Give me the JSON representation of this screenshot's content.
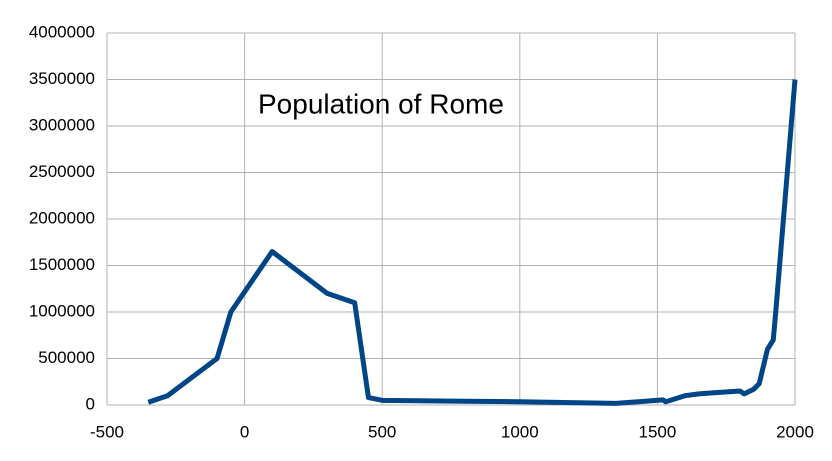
{
  "chart_data": {
    "type": "line",
    "title": "Population of Rome",
    "x": [
      -350,
      -280,
      -100,
      -50,
      100,
      300,
      400,
      450,
      500,
      800,
      1000,
      1350,
      1520,
      1530,
      1600,
      1650,
      1700,
      1800,
      1815,
      1850,
      1870,
      1900,
      1921,
      1930,
      2000
    ],
    "values": [
      30000,
      100000,
      500000,
      1000000,
      1650000,
      1200000,
      1100000,
      80000,
      50000,
      40000,
      35000,
      17000,
      55000,
      35000,
      100000,
      120000,
      130000,
      150000,
      120000,
      170000,
      230000,
      600000,
      700000,
      1000000,
      3500000
    ],
    "color": "#004586",
    "xlim": [
      -500,
      2000
    ],
    "xticks": [
      -500,
      0,
      500,
      1000,
      1500,
      2000
    ],
    "ylim": [
      0,
      4000000
    ],
    "yticks": [
      0,
      500000,
      1000000,
      1500000,
      2000000,
      2500000,
      3000000,
      3500000,
      4000000
    ],
    "grid": true
  }
}
